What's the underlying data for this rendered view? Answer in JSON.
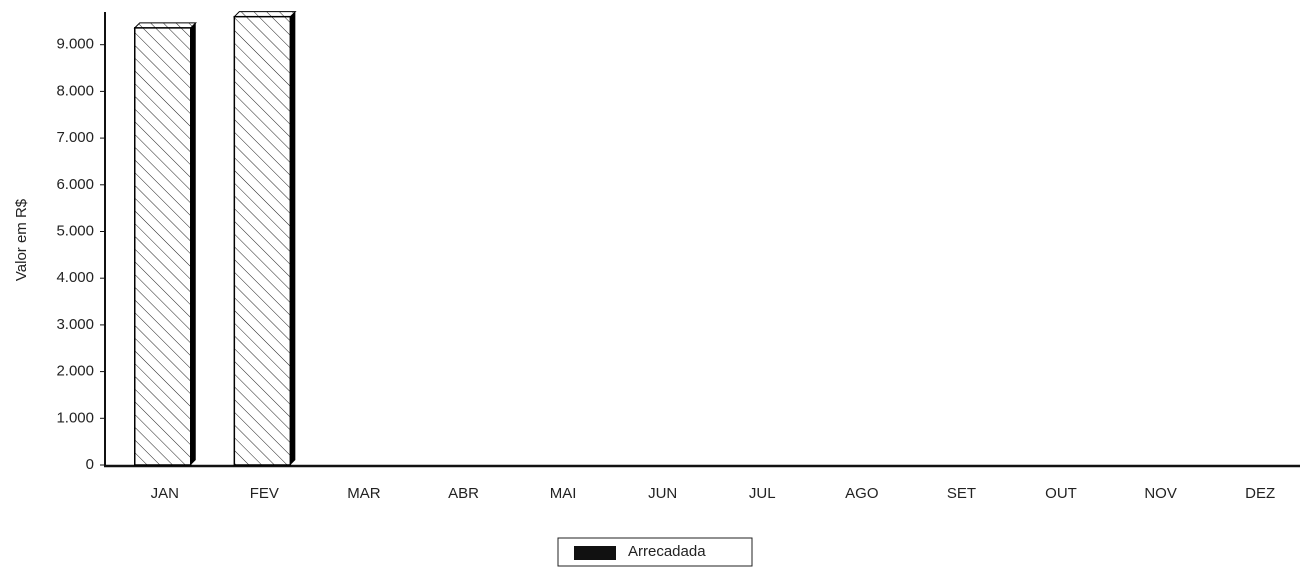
{
  "chart_data": {
    "type": "bar",
    "y_label": "Valor em R$",
    "categories": [
      "JAN",
      "FEV",
      "MAR",
      "ABR",
      "MAI",
      "JUN",
      "JUL",
      "AGO",
      "SET",
      "OUT",
      "NOV",
      "DEZ"
    ],
    "series": [
      {
        "name": "Arrecadada",
        "color": "#000000",
        "values": [
          9360,
          9600,
          0,
          0,
          0,
          0,
          0,
          0,
          0,
          0,
          0,
          0
        ]
      }
    ],
    "ylim": [
      0,
      9700
    ],
    "yticks": [
      0,
      {
        "value": 1000,
        "label": "1.000"
      },
      {
        "value": 2000,
        "label": "2.000"
      },
      {
        "value": 3000,
        "label": "3.000"
      },
      {
        "value": 4000,
        "label": "4.000"
      },
      {
        "value": 5000,
        "label": "5.000"
      },
      {
        "value": 6000,
        "label": "6.000"
      },
      {
        "value": 7000,
        "label": "7.000"
      },
      {
        "value": 8000,
        "label": "8.000"
      },
      {
        "value": 9000,
        "label": "9.000"
      }
    ],
    "grid": false,
    "legend": "bottom"
  }
}
